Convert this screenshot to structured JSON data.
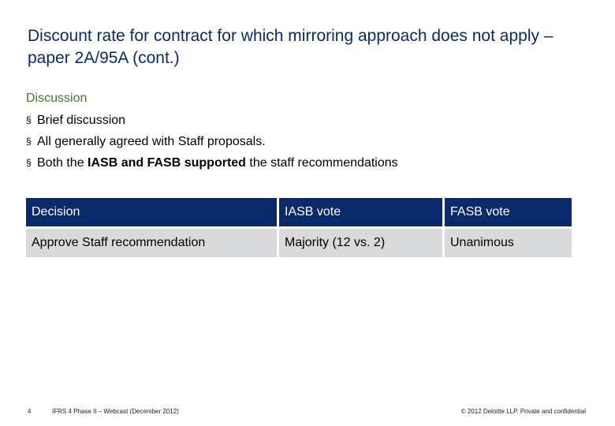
{
  "slide": {
    "title": "Discount rate for contract for which mirroring approach does not apply – paper 2A/95A (cont.)",
    "section_heading": "Discussion",
    "bullets": [
      {
        "pre": "Brief discussion",
        "bold": "",
        "post": ""
      },
      {
        "pre": "All generally agreed with Staff proposals.",
        "bold": "",
        "post": ""
      },
      {
        "pre": "Both the ",
        "bold": "IASB and FASB supported",
        "post": " the staff recommendations"
      }
    ],
    "bullet_glyph": "§"
  },
  "table": {
    "headers": [
      "Decision",
      "IASB vote",
      "FASB vote"
    ],
    "rows": [
      [
        "Approve Staff recommendation",
        "Majority (12 vs. 2)",
        "Unanimous"
      ]
    ]
  },
  "footer": {
    "page_number": "4",
    "deck_title": "IFRS 4 Phase II – Webcast (December 2012)",
    "copyright": "© 2012 Deloitte LLP. Private and confidential"
  },
  "colors": {
    "title": "#0b2a6b",
    "section_heading": "#3d7a2a",
    "table_header_bg": "#0b2a6b",
    "table_cell_bg": "#d9dadb"
  }
}
